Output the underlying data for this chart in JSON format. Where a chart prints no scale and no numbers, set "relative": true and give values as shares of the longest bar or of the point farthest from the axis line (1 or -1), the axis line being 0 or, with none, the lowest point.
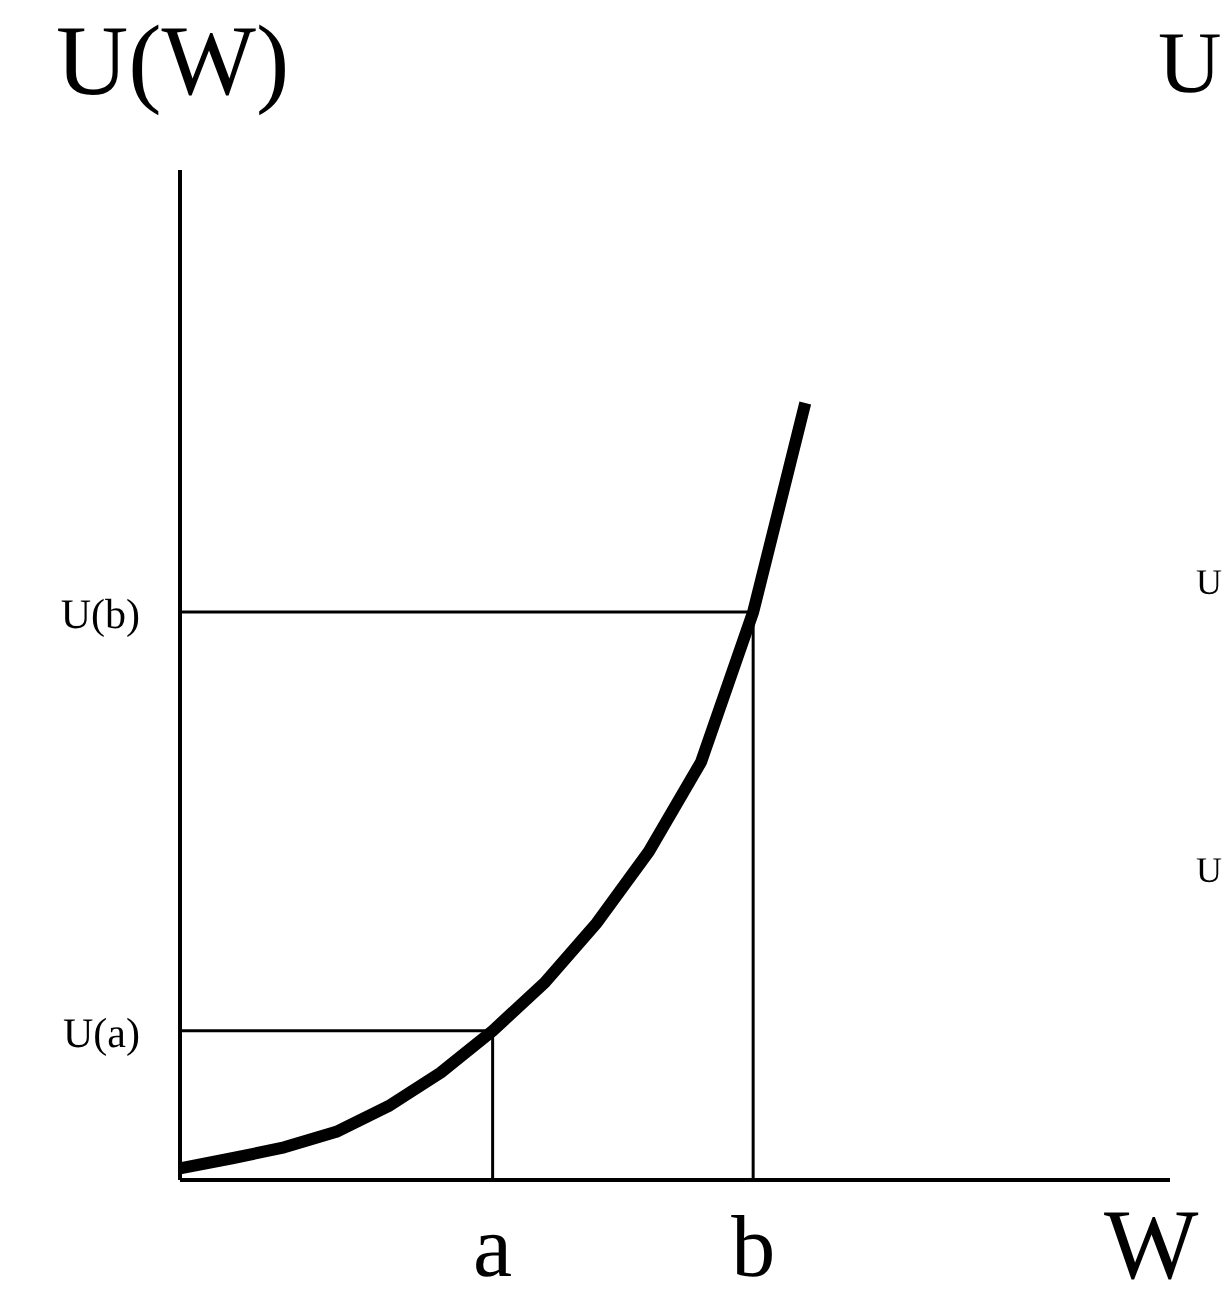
{
  "chart_data": {
    "type": "line",
    "ylabel": "U(W)",
    "xlabel": "W",
    "relative": true,
    "categories": [
      null,
      null,
      null,
      null,
      null,
      null,
      "a",
      null,
      null,
      null,
      null,
      "b",
      null,
      null,
      null,
      null,
      null,
      null,
      null,
      null
    ],
    "series": [
      {
        "color": "#000000",
        "values": [
          0.015,
          0.028,
          0.042,
          0.062,
          0.095,
          0.138,
          0.192,
          0.254,
          0.331,
          0.423,
          0.538,
          0.731,
          1,
          null,
          null,
          null,
          null,
          null,
          null,
          null
        ]
      },
      {
        "color": "#000000",
        "values": [
          0.192,
          0.192,
          0.192,
          0.192,
          0.192,
          0.192,
          0.192,
          null,
          null,
          null,
          null,
          null,
          null,
          null,
          null,
          null,
          null,
          null,
          null,
          null
        ]
      },
      {
        "color": "#000000",
        "values": [
          0.731,
          0.731,
          0.731,
          0.731,
          0.731,
          0.731,
          0.731,
          0.731,
          0.731,
          0.731,
          0.731,
          0.731,
          null,
          null,
          null,
          null,
          null,
          null,
          null,
          null
        ]
      }
    ],
    "ref_lines": [
      {
        "axis": "x",
        "value": "a",
        "color": "#000000"
      },
      {
        "axis": "x",
        "value": "b",
        "color": "#000000"
      }
    ],
    "annotations": [
      "U(a)",
      "U(b)",
      "U",
      "U",
      "U"
    ]
  }
}
